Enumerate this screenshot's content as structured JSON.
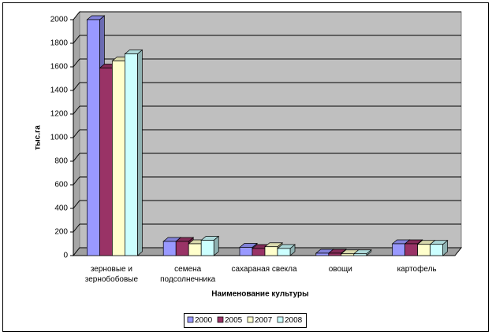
{
  "chart_data": {
    "type": "bar3d",
    "x_label": "Наименование культуры",
    "y_label": "тыс.га",
    "categories": [
      "зерновые и зернобобовые",
      "семена подсолнечника",
      "сахараная свекла",
      "овощи",
      "картофель"
    ],
    "series": [
      {
        "name": "2000",
        "color": "#9999ff",
        "values": [
          2000,
          120,
          70,
          20,
          100
        ]
      },
      {
        "name": "2005",
        "color": "#993366",
        "values": [
          1590,
          120,
          60,
          20,
          100
        ]
      },
      {
        "name": "2007",
        "color": "#ffffcc",
        "values": [
          1650,
          100,
          75,
          15,
          95
        ]
      },
      {
        "name": "2008",
        "color": "#ccffff",
        "values": [
          1710,
          130,
          60,
          15,
          95
        ]
      }
    ],
    "ylim": [
      0,
      2000
    ],
    "yticks": [
      0,
      200,
      400,
      600,
      800,
      1000,
      1200,
      1400,
      1600,
      1800,
      2000
    ],
    "grid": true,
    "legend": "bottom"
  }
}
